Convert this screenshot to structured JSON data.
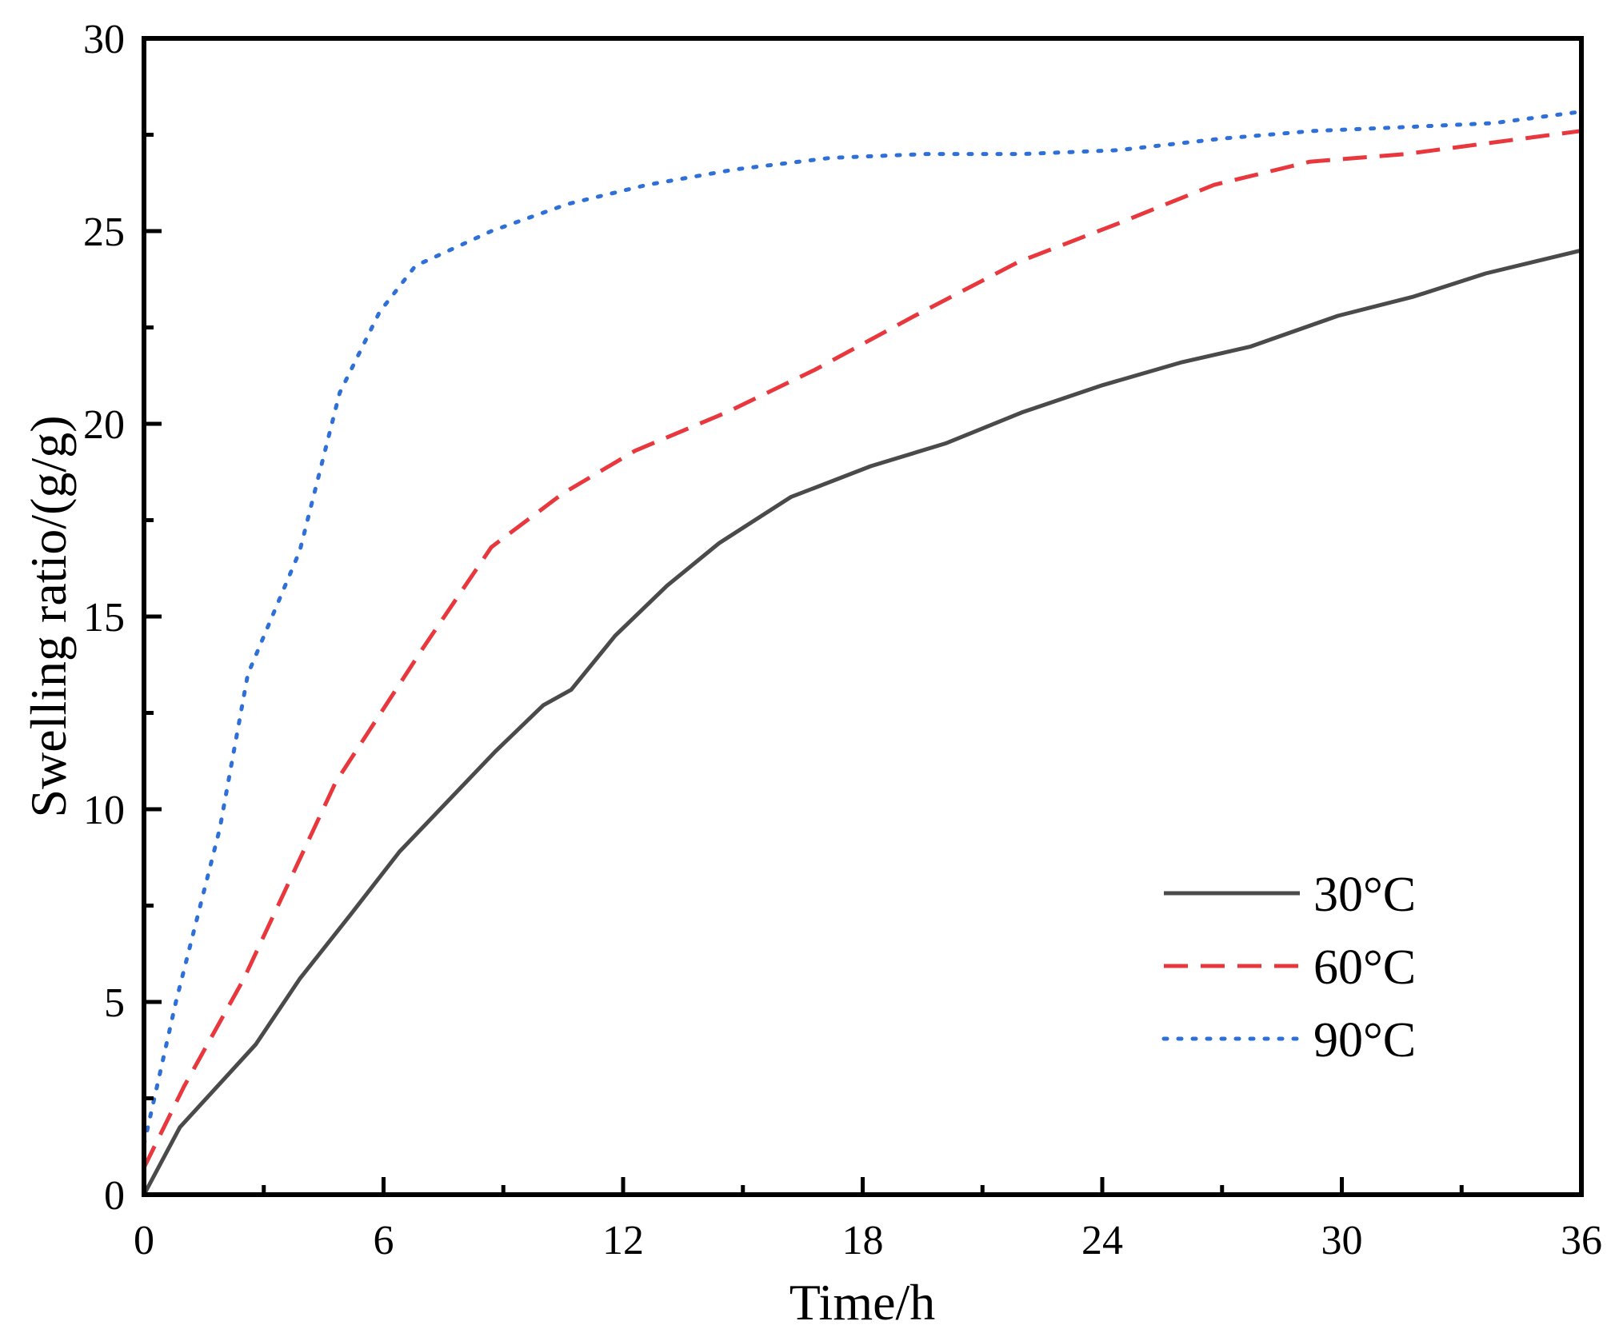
{
  "chart_data": {
    "type": "line",
    "title": "",
    "xlabel": "Time/h",
    "ylabel": "Swelling ratio/(g/g)",
    "xlim": [
      0,
      36
    ],
    "ylim": [
      0,
      30
    ],
    "xticks": [
      "0",
      "6",
      "12",
      "18",
      "24",
      "30",
      "36"
    ],
    "yticks": [
      "0",
      "5",
      "10",
      "15",
      "20",
      "25",
      "30"
    ],
    "xtick_values": [
      0,
      6,
      12,
      18,
      24,
      30,
      36
    ],
    "ytick_values": [
      0,
      5,
      10,
      15,
      20,
      25,
      30
    ],
    "grid": false,
    "legend_position": "lower-right",
    "series": [
      {
        "name": "30°C",
        "color": "#4a4a4a",
        "style": "solid",
        "x": [
          0,
          0.9,
          2.8,
          3.9,
          5.2,
          6.4,
          7.6,
          8.8,
          10.0,
          10.7,
          11.8,
          13.1,
          14.4,
          16.2,
          18.2,
          20.1,
          22.0,
          24.0,
          26.0,
          27.7,
          29.9,
          31.8,
          33.6,
          36
        ],
        "y": [
          0,
          1.75,
          3.9,
          5.6,
          7.3,
          8.9,
          10.2,
          11.5,
          12.7,
          13.1,
          14.5,
          15.8,
          16.9,
          18.1,
          18.9,
          19.5,
          20.3,
          21.0,
          21.6,
          22.0,
          22.8,
          23.3,
          23.9,
          24.5
        ]
      },
      {
        "name": "60°C",
        "color": "#e8383d",
        "style": "dashed",
        "x": [
          0,
          1.0,
          2.5,
          4.8,
          7.0,
          8.7,
          10.5,
          12.3,
          14.6,
          16.8,
          19.3,
          21.9,
          24.4,
          26.8,
          29.2,
          31.6,
          33.8,
          36
        ],
        "y": [
          0.7,
          2.8,
          5.6,
          10.7,
          14.2,
          16.8,
          18.2,
          19.3,
          20.3,
          21.4,
          22.8,
          24.2,
          25.2,
          26.2,
          26.8,
          27.0,
          27.3,
          27.6
        ]
      },
      {
        "name": "90°C",
        "color": "#2e6fd8",
        "style": "dotted",
        "x": [
          0,
          0.8,
          1.9,
          2.6,
          3.9,
          4.9,
          5.9,
          6.8,
          8.7,
          10.6,
          12.6,
          14.8,
          17.2,
          19.6,
          22.0,
          24.4,
          27.0,
          29.3,
          31.6,
          33.8,
          36
        ],
        "y": [
          1.3,
          5.0,
          9.5,
          13.5,
          16.7,
          20.8,
          22.9,
          24.1,
          25.0,
          25.7,
          26.2,
          26.6,
          26.9,
          27.0,
          27.0,
          27.1,
          27.4,
          27.6,
          27.7,
          27.8,
          28.1
        ]
      }
    ]
  }
}
